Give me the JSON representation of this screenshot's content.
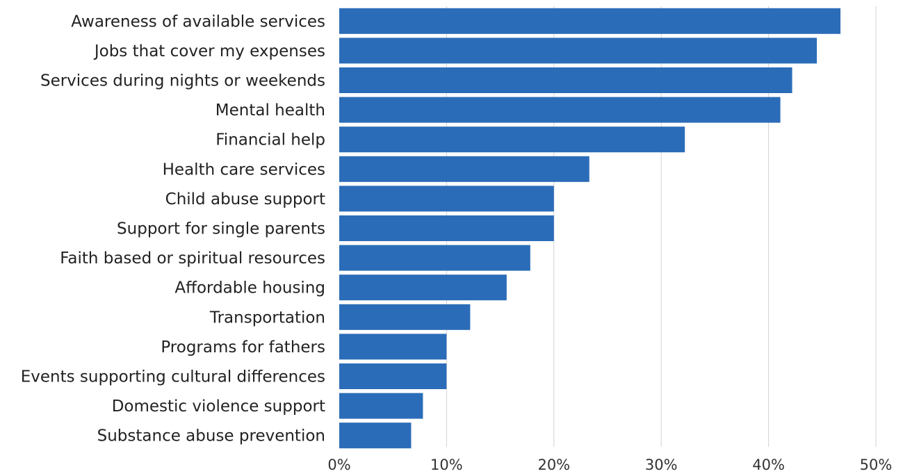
{
  "chart_data": {
    "type": "bar",
    "orientation": "horizontal",
    "title": "",
    "xlabel": "",
    "ylabel": "",
    "categories": [
      "Awareness of available services",
      "Jobs that cover my expenses",
      "Services during nights or weekends",
      "Mental health",
      "Financial help",
      "Health care services",
      "Child abuse support",
      "Support for single parents",
      "Faith based or spiritual resources",
      "Affordable housing",
      "Transportation",
      "Programs for fathers",
      "Events supporting cultural differences",
      "Domestic violence support",
      "Substance abuse prevention"
    ],
    "values": [
      46.7,
      44.5,
      42.2,
      41.1,
      32.2,
      23.3,
      20.0,
      20.0,
      17.8,
      15.6,
      12.2,
      10.0,
      10.0,
      7.8,
      6.7
    ],
    "xlim": [
      0,
      50
    ],
    "x_ticks": [
      0,
      10,
      20,
      30,
      40,
      50
    ],
    "x_tick_labels": [
      "0%",
      "10%",
      "20%",
      "30%",
      "40%",
      "50%"
    ],
    "grid": true,
    "bar_color": "#2b6cb8",
    "grid_color": "#d3d3d3",
    "legend": "none"
  }
}
